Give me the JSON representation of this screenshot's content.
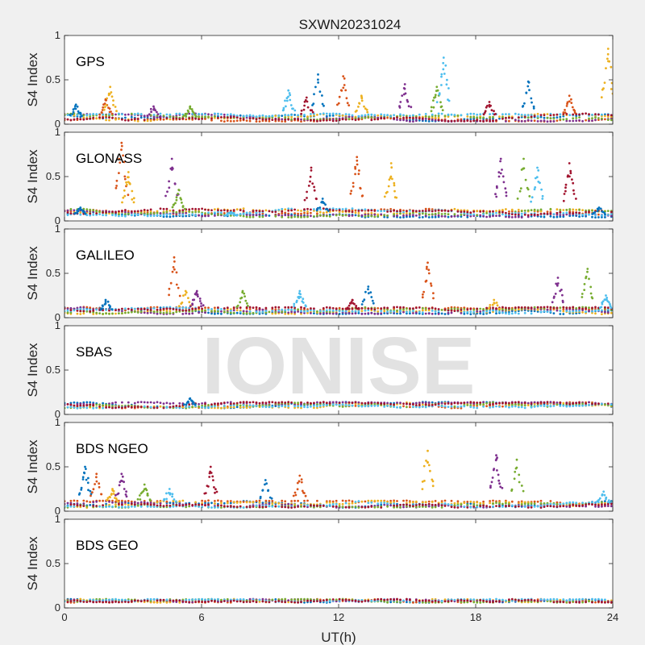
{
  "figure": {
    "title": "SXWN20231024",
    "watermark": "IONISE",
    "xlabel": "UT(h)",
    "ylabel": "S4 Index"
  },
  "colors": [
    "#0072BD",
    "#D95319",
    "#EDB120",
    "#7E2F8E",
    "#77AC30",
    "#4DBEEE",
    "#A2142F"
  ],
  "chart_data": [
    {
      "type": "scatter",
      "name": "GPS",
      "xlim": [
        0,
        24
      ],
      "ylim": [
        0,
        1
      ],
      "xticks": [
        "0",
        "6",
        "12",
        "18",
        "24"
      ],
      "yticks": [
        "0",
        "0.5",
        "1"
      ],
      "baseline": [
        0.03,
        0.12
      ],
      "spikes": [
        [
          0.5,
          0.22
        ],
        [
          1.8,
          0.28
        ],
        [
          2.0,
          0.42
        ],
        [
          3.9,
          0.2
        ],
        [
          5.5,
          0.2
        ],
        [
          9.8,
          0.38
        ],
        [
          10.6,
          0.3
        ],
        [
          11.1,
          0.56
        ],
        [
          12.2,
          0.54
        ],
        [
          13.0,
          0.32
        ],
        [
          14.9,
          0.45
        ],
        [
          16.3,
          0.42
        ],
        [
          16.6,
          0.75
        ],
        [
          18.6,
          0.25
        ],
        [
          20.3,
          0.48
        ],
        [
          22.1,
          0.32
        ],
        [
          23.8,
          0.85
        ]
      ]
    },
    {
      "type": "scatter",
      "name": "GLONASS",
      "xlim": [
        0,
        24
      ],
      "ylim": [
        0,
        1
      ],
      "xticks": [
        "0",
        "6",
        "12",
        "18",
        "24"
      ],
      "yticks": [
        "0",
        "0.5",
        "1"
      ],
      "baseline": [
        0.04,
        0.14
      ],
      "spikes": [
        [
          0.7,
          0.15
        ],
        [
          2.5,
          0.88
        ],
        [
          2.8,
          0.55
        ],
        [
          4.7,
          0.7
        ],
        [
          5.0,
          0.35
        ],
        [
          7.3,
          0.1
        ],
        [
          10.8,
          0.6
        ],
        [
          11.3,
          0.25
        ],
        [
          12.8,
          0.72
        ],
        [
          14.3,
          0.65
        ],
        [
          19.1,
          0.7
        ],
        [
          20.1,
          0.7
        ],
        [
          20.7,
          0.6
        ],
        [
          22.1,
          0.65
        ],
        [
          23.4,
          0.15
        ]
      ]
    },
    {
      "type": "scatter",
      "name": "GALILEO",
      "xlim": [
        0,
        24
      ],
      "ylim": [
        0,
        1
      ],
      "xticks": [
        "0",
        "6",
        "12",
        "18",
        "24"
      ],
      "yticks": [
        "0",
        "0.5",
        "1"
      ],
      "baseline": [
        0.04,
        0.12
      ],
      "spikes": [
        [
          1.8,
          0.2
        ],
        [
          4.8,
          0.68
        ],
        [
          5.3,
          0.3
        ],
        [
          5.8,
          0.3
        ],
        [
          7.8,
          0.3
        ],
        [
          10.3,
          0.3
        ],
        [
          12.6,
          0.2
        ],
        [
          13.3,
          0.35
        ],
        [
          15.9,
          0.62
        ],
        [
          18.8,
          0.2
        ],
        [
          21.6,
          0.45
        ],
        [
          22.9,
          0.55
        ],
        [
          23.7,
          0.25
        ]
      ]
    },
    {
      "type": "scatter",
      "name": "SBAS",
      "xlim": [
        0,
        24
      ],
      "ylim": [
        0,
        1
      ],
      "xticks": [
        "0",
        "6",
        "12",
        "18",
        "24"
      ],
      "yticks": [
        "0",
        "0.5",
        "1"
      ],
      "baseline": [
        0.07,
        0.14
      ],
      "spikes": [
        [
          5.5,
          0.18
        ]
      ]
    },
    {
      "type": "scatter",
      "name": "BDS NGEO",
      "xlim": [
        0,
        24
      ],
      "ylim": [
        0,
        1
      ],
      "xticks": [
        "0",
        "6",
        "12",
        "18",
        "24"
      ],
      "yticks": [
        "0",
        "0.5",
        "1"
      ],
      "baseline": [
        0.04,
        0.12
      ],
      "spikes": [
        [
          0.9,
          0.5
        ],
        [
          1.4,
          0.42
        ],
        [
          2.1,
          0.25
        ],
        [
          2.5,
          0.42
        ],
        [
          3.5,
          0.3
        ],
        [
          4.6,
          0.25
        ],
        [
          6.4,
          0.5
        ],
        [
          8.8,
          0.35
        ],
        [
          10.3,
          0.4
        ],
        [
          15.9,
          0.68
        ],
        [
          18.9,
          0.63
        ],
        [
          19.8,
          0.58
        ],
        [
          23.6,
          0.22
        ]
      ]
    },
    {
      "type": "scatter",
      "name": "BDS GEO",
      "xlim": [
        0,
        24
      ],
      "ylim": [
        0,
        1
      ],
      "xticks": [
        "0",
        "6",
        "12",
        "18",
        "24"
      ],
      "yticks": [
        "0",
        "0.5",
        "1"
      ],
      "baseline": [
        0.06,
        0.1
      ],
      "spikes": []
    }
  ]
}
